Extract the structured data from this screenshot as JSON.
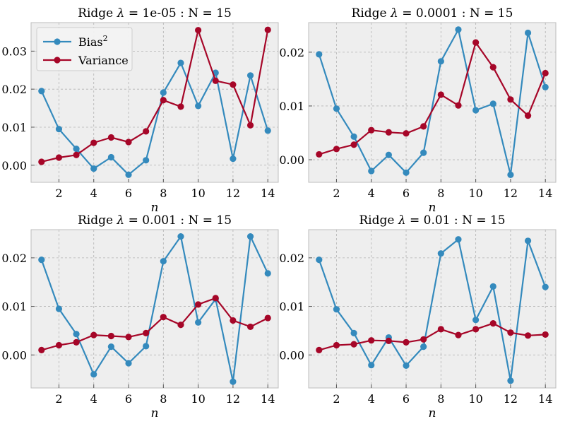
{
  "chart_data": [
    {
      "type": "line",
      "title_prefix": "Ridge ",
      "lambda_symbol": "λ",
      "title": "Ridge λ = 1e-05 : N = 15",
      "title_suffix": " = 1e-05 : N = 15",
      "xlabel": "n",
      "ylabel": "",
      "xlim": [
        0.4,
        14.6
      ],
      "ylim": [
        -0.0045,
        0.0375
      ],
      "xticks": [
        2,
        4,
        6,
        8,
        10,
        12,
        14
      ],
      "yticks": [
        0.0,
        0.01,
        0.02,
        0.03
      ],
      "ytick_labels": [
        "0.00",
        "0.01",
        "0.02",
        "0.03"
      ],
      "grid": true,
      "legend": {
        "placement": "top-left",
        "entries": [
          "Bias2",
          "Variance"
        ]
      },
      "x": [
        1,
        2,
        3,
        4,
        5,
        6,
        7,
        8,
        9,
        10,
        11,
        12,
        13,
        14
      ],
      "series": [
        {
          "name": "Bias2",
          "color": "#348ABD",
          "values": [
            0.0195,
            0.0095,
            0.0043,
            -0.0009,
            0.0021,
            -0.0025,
            0.0013,
            0.0191,
            0.0269,
            0.0156,
            0.0243,
            0.0017,
            0.0236,
            0.0091
          ]
        },
        {
          "name": "Variance",
          "color": "#A60628",
          "values": [
            0.0009,
            0.002,
            0.0027,
            0.0059,
            0.0073,
            0.0061,
            0.0089,
            0.0171,
            0.0154,
            0.0355,
            0.0222,
            0.0212,
            0.0105,
            0.0356
          ]
        }
      ]
    },
    {
      "type": "line",
      "title_prefix": "Ridge ",
      "lambda_symbol": "λ",
      "title": "Ridge λ = 0.0001 : N = 15",
      "title_suffix": " = 0.0001 : N = 15",
      "xlabel": "n",
      "ylabel": "",
      "xlim": [
        0.4,
        14.6
      ],
      "ylim": [
        -0.0042,
        0.0255
      ],
      "xticks": [
        2,
        4,
        6,
        8,
        10,
        12,
        14
      ],
      "yticks": [
        0.0,
        0.01,
        0.02
      ],
      "ytick_labels": [
        "0.00",
        "0.01",
        "0.02"
      ],
      "grid": true,
      "x": [
        1,
        2,
        3,
        4,
        5,
        6,
        7,
        8,
        9,
        10,
        11,
        12,
        13,
        14
      ],
      "series": [
        {
          "name": "Bias2",
          "color": "#348ABD",
          "values": [
            0.0196,
            0.0095,
            0.0043,
            -0.0021,
            0.0009,
            -0.0024,
            0.0013,
            0.0183,
            0.0242,
            0.0092,
            0.0104,
            -0.0028,
            0.0236,
            0.0135
          ]
        },
        {
          "name": "Variance",
          "color": "#A60628",
          "values": [
            0.001,
            0.002,
            0.0028,
            0.0055,
            0.0051,
            0.0049,
            0.0062,
            0.0121,
            0.0101,
            0.0218,
            0.0172,
            0.0112,
            0.0082,
            0.0161
          ]
        }
      ]
    },
    {
      "type": "line",
      "title_prefix": "Ridge ",
      "lambda_symbol": "λ",
      "title": "Ridge λ = 0.001 : N = 15",
      "title_suffix": " = 0.001 : N = 15",
      "xlabel": "n",
      "ylabel": "",
      "xlim": [
        0.4,
        14.6
      ],
      "ylim": [
        -0.0068,
        0.0258
      ],
      "xticks": [
        2,
        4,
        6,
        8,
        10,
        12,
        14
      ],
      "yticks": [
        0.0,
        0.01,
        0.02
      ],
      "ytick_labels": [
        "0.00",
        "0.01",
        "0.02"
      ],
      "grid": true,
      "x": [
        1,
        2,
        3,
        4,
        5,
        6,
        7,
        8,
        9,
        10,
        11,
        12,
        13,
        14
      ],
      "series": [
        {
          "name": "Bias2",
          "color": "#348ABD",
          "values": [
            0.0196,
            0.0095,
            0.0043,
            -0.004,
            0.0017,
            -0.0017,
            0.0018,
            0.0193,
            0.0244,
            0.0067,
            0.0115,
            -0.0055,
            0.0244,
            0.0168
          ]
        },
        {
          "name": "Variance",
          "color": "#A60628",
          "values": [
            0.001,
            0.002,
            0.0026,
            0.0041,
            0.0039,
            0.0037,
            0.0045,
            0.0078,
            0.0062,
            0.0104,
            0.0117,
            0.0071,
            0.0058,
            0.0076
          ]
        }
      ]
    },
    {
      "type": "line",
      "title_prefix": "Ridge ",
      "lambda_symbol": "λ",
      "title": "Ridge λ = 0.01 : N = 15",
      "title_suffix": " = 0.01 : N = 15",
      "xlabel": "n",
      "ylabel": "",
      "xlim": [
        0.4,
        14.6
      ],
      "ylim": [
        -0.0068,
        0.0258
      ],
      "xticks": [
        2,
        4,
        6,
        8,
        10,
        12,
        14
      ],
      "yticks": [
        0.0,
        0.01,
        0.02
      ],
      "ytick_labels": [
        "0.00",
        "0.01",
        "0.02"
      ],
      "grid": true,
      "x": [
        1,
        2,
        3,
        4,
        5,
        6,
        7,
        8,
        9,
        10,
        11,
        12,
        13,
        14
      ],
      "series": [
        {
          "name": "Bias2",
          "color": "#348ABD",
          "values": [
            0.0196,
            0.0094,
            0.0045,
            -0.0021,
            0.0036,
            -0.0022,
            0.0017,
            0.0209,
            0.0238,
            0.0072,
            0.0141,
            -0.0053,
            0.0235,
            0.014
          ]
        },
        {
          "name": "Variance",
          "color": "#A60628",
          "values": [
            0.001,
            0.002,
            0.0022,
            0.003,
            0.0029,
            0.0026,
            0.0032,
            0.0053,
            0.0041,
            0.0053,
            0.0065,
            0.0046,
            0.004,
            0.0042
          ]
        }
      ]
    }
  ],
  "legend_labels": {
    "bias_base": "Bias",
    "bias_sup": "2",
    "variance": "Variance"
  },
  "colors": {
    "background": "#EEEEEE",
    "grid": "#B2B2B2",
    "bias": "#348ABD",
    "variance": "#A60628"
  }
}
